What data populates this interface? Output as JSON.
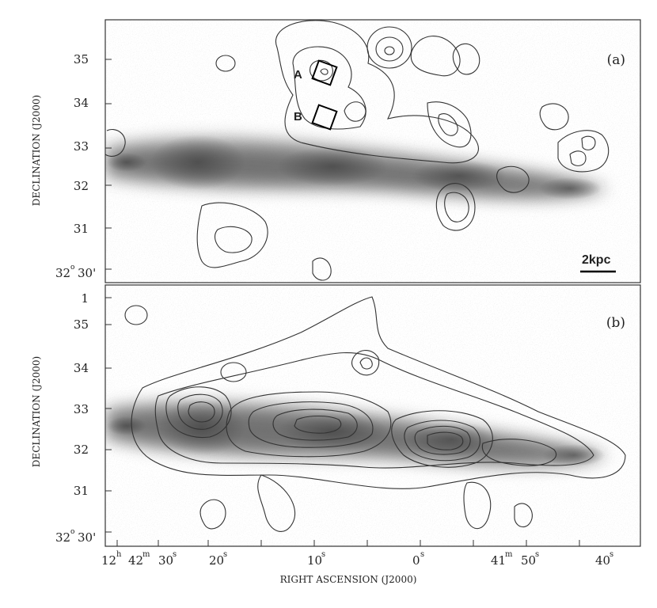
{
  "figure": {
    "panels": [
      {
        "label": "(a)",
        "ylabel": "DECLINATION (J2000)",
        "yticks": [
          "35",
          "34",
          "33",
          "32",
          "31"
        ],
        "yorigin_deg": "32",
        "yorigin_min": "30'",
        "yorigin_sup": "o",
        "box_labels": [
          "A",
          "B"
        ],
        "scalebar_label": "2kpc"
      },
      {
        "label": "(b)",
        "ylabel": "DECLINATION (J2000)",
        "yticks": [
          "1",
          "35",
          "34",
          "33",
          "32",
          "31"
        ],
        "yorigin_deg": "32",
        "yorigin_min": "30'",
        "yorigin_sup": "o"
      }
    ],
    "xaxis": {
      "label": "RIGHT ASCENSION (J2000)",
      "ticks": [
        {
          "main": "12",
          "sup": "h"
        },
        {
          "main": "42",
          "sup": "m"
        },
        {
          "main": "30",
          "sup": "s"
        },
        {
          "main": "20",
          "sup": "s"
        },
        {
          "main": "10",
          "sup": "s"
        },
        {
          "main": "0",
          "sup": "s"
        },
        {
          "main": "41",
          "sup": "m"
        },
        {
          "main": "50",
          "sup": "s"
        },
        {
          "main": "40",
          "sup": "s"
        }
      ]
    }
  }
}
